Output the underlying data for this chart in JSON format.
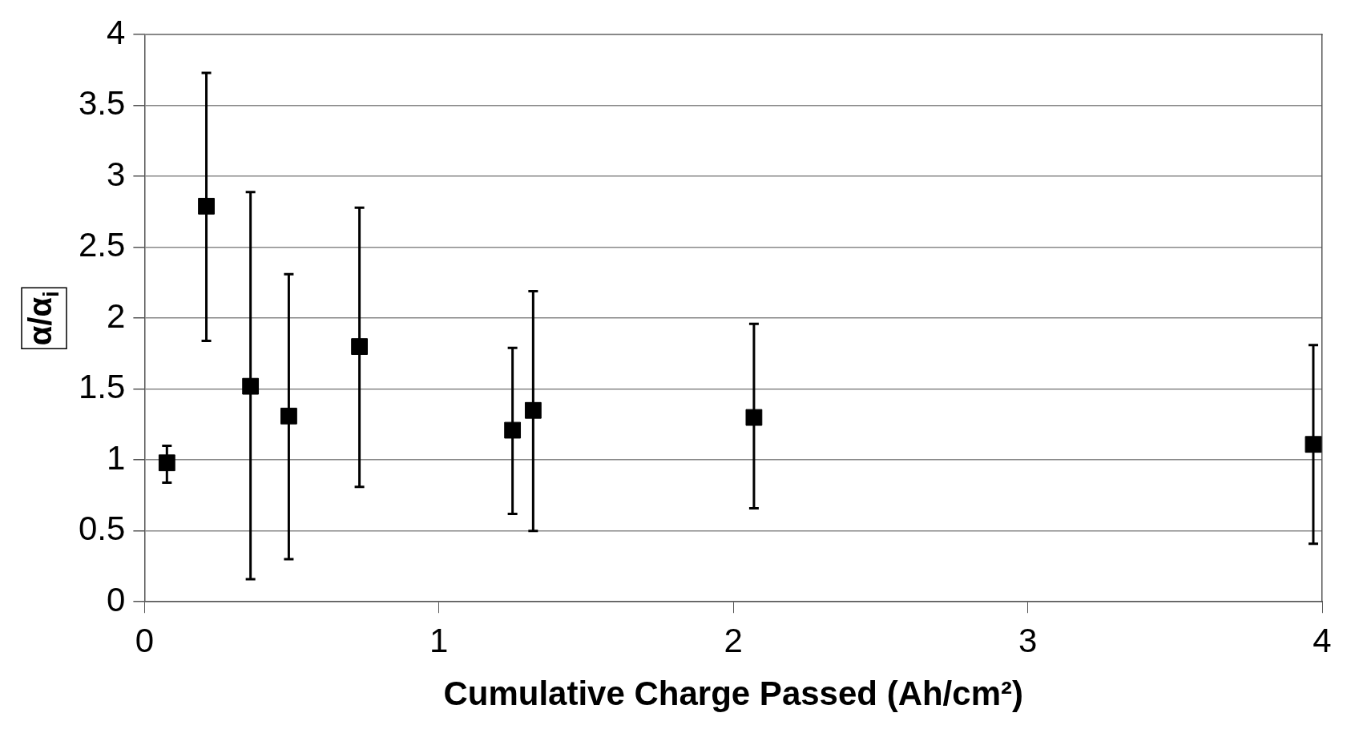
{
  "chart_data": {
    "type": "scatter",
    "xlabel": "Cumulative Charge Passed (Ah/cm²)",
    "ylabel": "α/α$_{i}$",
    "x": [
      0.076,
      0.21,
      0.36,
      0.49,
      0.73,
      1.25,
      1.32,
      2.07,
      3.97
    ],
    "series": [
      {
        "color": "#000000",
        "values": [
          0.98,
          2.79,
          1.52,
          1.31,
          1.8,
          1.21,
          1.35,
          1.3,
          1.11
        ],
        "errors": [
          [
            0.84,
            1.1
          ],
          [
            1.84,
            3.73
          ],
          [
            0.16,
            2.89
          ],
          [
            0.3,
            2.31
          ],
          [
            0.81,
            2.78
          ],
          [
            0.62,
            1.79
          ],
          [
            0.5,
            2.19
          ],
          [
            0.66,
            1.96
          ],
          [
            0.41,
            1.81
          ]
        ]
      }
    ],
    "xlim": [
      0,
      4
    ],
    "xticks": [
      0,
      1,
      2,
      3,
      4
    ],
    "ylim": [
      0,
      4
    ],
    "yticks": [
      0,
      0.5,
      1,
      1.5,
      2,
      2.5,
      3,
      3.5,
      4
    ],
    "grid": "y",
    "legend": false,
    "marker": "square"
  }
}
